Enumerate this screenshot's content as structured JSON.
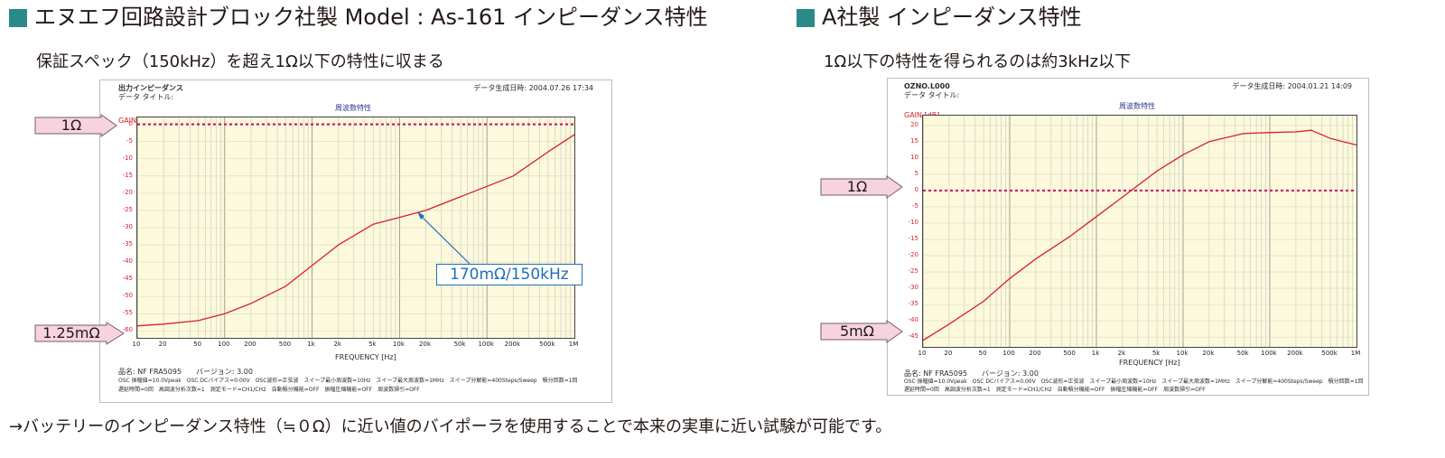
{
  "colors": {
    "accent": "#2a8a8a",
    "curve": "#d8202a",
    "reference": "#d01b6a",
    "grid_bg": "#fcf9dc",
    "callout": "#1f6fb5",
    "arrow_fill": "#f7d3e0",
    "arrow_stroke": "#7a5c66"
  },
  "left": {
    "title": "エヌエフ回路設計ブロック社製 Model : As-161 インピーダンス特性",
    "subtitle": "保証スペック（150kHz）を超え1Ω以下の特性に収まる",
    "panel": {
      "header_title": "出力インピーダンス",
      "header_subtitle": "データ タイトル:",
      "date": "データ生成日時: 2004.07.26 17:34",
      "chart_title": "周波数特性",
      "gain_label": "GAIN [dB]",
      "freq_label": "FREQUENCY [Hz]",
      "footer_lines": [
        "品名: NF FRA5095　　バージョン: 3.00",
        "OSC 振幅値=10.0Vpeak　OSC DCバイアス=0.00V　OSC波形=正弦波　スイープ最小周波数=10Hz　スイープ最大周波数=1MHz　スイープ分解能=400Steps/Sweep　積分回数=1回",
        "遅延時間=0回　高調波分析次数=1　測定モード=CH1/CH2　自動積分機能=OFF　振幅圧縮機能=OFF　周波数掃引=OFF"
      ]
    },
    "arrows": {
      "top": "1Ω",
      "bottom": "1.25mΩ"
    },
    "callout": "170mΩ/150kHz"
  },
  "right": {
    "title": "A社製 インピーダンス特性",
    "subtitle": "1Ω以下の特性を得られるのは約3kHz以下",
    "panel": {
      "header_title": "OZNO.L000",
      "header_subtitle": "データ タイトル:",
      "date": "データ生成日時: 2004.01.21 14:09",
      "chart_title": "周波数特性",
      "gain_label": "GAIN [dB]",
      "freq_label": "FREQUENCY [Hz]",
      "footer_lines": [
        "品名: NF FRA5095　　バージョン: 3.00",
        "OSC 振幅値=10.0Vpeak　OSC DCバイアス=0.00V　OSC波形=正弦波　スイープ最小周波数=10Hz　スイープ最大周波数=1MHz　スイープ分解能=400Steps/Sweep　積分回数=1回",
        "遅延時間=0回　高調波分析次数=1　測定モード=CH1/CH2　自動積分機能=OFF　振幅圧縮機能=OFF　周波数掃引=OFF"
      ]
    },
    "arrows": {
      "top": "1Ω",
      "bottom": "5mΩ"
    }
  },
  "footer": "→バッテリーのインピーダンス特性（≒０Ω）に近い値のバイポーラを使用することで本来の実車に近い試験が可能です。",
  "chart_data": [
    {
      "type": "line",
      "title": "周波数特性",
      "xlabel": "FREQUENCY [Hz]",
      "ylabel": "GAIN [dB]",
      "xscale": "log",
      "xlim": [
        10,
        1000000
      ],
      "ylim": [
        -62,
        2
      ],
      "grid": true,
      "reference_line": 0,
      "yticks": [
        "0",
        "-5",
        "-10",
        "-15",
        "-20",
        "-25",
        "-30",
        "-35",
        "-40",
        "-45",
        "-50",
        "-55",
        "-60"
      ],
      "xticks": [
        "10",
        "20",
        "50",
        "100",
        "200",
        "500",
        "1k",
        "2k",
        "5k",
        "10k",
        "20k",
        "50k",
        "100k",
        "200k",
        "500k",
        "1M"
      ],
      "x": [
        10,
        20,
        50,
        100,
        200,
        500,
        1000,
        2000,
        5000,
        10000,
        20000,
        50000,
        100000,
        200000,
        500000,
        1000000
      ],
      "y": [
        -58.5,
        -58,
        -57,
        -55,
        -52,
        -47,
        -41,
        -35,
        -29,
        -27,
        -25,
        -21,
        -18,
        -15,
        -8,
        -3
      ],
      "annotation": "170mΩ/150kHz"
    },
    {
      "type": "line",
      "title": "周波数特性",
      "xlabel": "FREQUENCY [Hz]",
      "ylabel": "GAIN [dB]",
      "xscale": "log",
      "xlim": [
        10,
        1000000
      ],
      "ylim": [
        -48,
        23
      ],
      "grid": true,
      "reference_line": 0,
      "yticks": [
        "20",
        "15",
        "10",
        "5",
        "0",
        "-5",
        "-10",
        "-15",
        "-20",
        "-25",
        "-30",
        "-35",
        "-40",
        "-45"
      ],
      "xticks": [
        "10",
        "20",
        "50",
        "100",
        "200",
        "500",
        "1k",
        "2k",
        "5k",
        "10k",
        "20k",
        "50k",
        "100k",
        "200k",
        "500k",
        "1M"
      ],
      "x": [
        10,
        20,
        50,
        100,
        200,
        500,
        1000,
        2000,
        5000,
        10000,
        20000,
        50000,
        100000,
        200000,
        300000,
        500000,
        1000000
      ],
      "y": [
        -46,
        -41,
        -34,
        -27,
        -21,
        -14,
        -8,
        -2,
        6,
        11,
        15,
        17.5,
        17.8,
        18,
        18.5,
        16,
        14
      ]
    }
  ]
}
